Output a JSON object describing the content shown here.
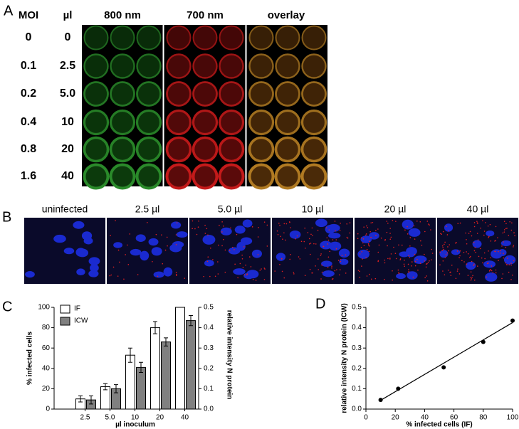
{
  "panel_a": {
    "label": "A",
    "headers": [
      "MOI",
      "µl",
      "800 nm",
      "700 nm",
      "overlay"
    ],
    "rows": [
      [
        "0",
        "0"
      ],
      [
        "0.1",
        "2.5"
      ],
      [
        "0.2",
        "5.0"
      ],
      [
        "0.4",
        "10"
      ],
      [
        "0.8",
        "20"
      ],
      [
        "1.6",
        "40"
      ]
    ]
  },
  "panel_b": {
    "label": "B",
    "images": [
      "uninfected",
      "2.5 µl",
      "5.0 µl",
      "10 µl",
      "20 µl",
      "40 µl"
    ]
  },
  "chart_data": [
    {
      "type": "bar",
      "panel_label": "C",
      "categories": [
        "2.5",
        "5.0",
        "10",
        "20",
        "40"
      ],
      "series": [
        {
          "name": "IF",
          "color": "#ffffff",
          "values": [
            10,
            22,
            53,
            80,
            100
          ],
          "errors": [
            3,
            3,
            7,
            6,
            0
          ]
        },
        {
          "name": "ICW",
          "color": "#808080",
          "values": [
            0.045,
            0.1,
            0.205,
            0.33,
            0.435
          ],
          "errors": [
            0.02,
            0.02,
            0.025,
            0.02,
            0.025
          ],
          "axis": "y2"
        }
      ],
      "ylim": [
        0,
        100
      ],
      "yticks": [
        0,
        20,
        40,
        60,
        80,
        100
      ],
      "y2lim": [
        0,
        0.5
      ],
      "y2ticks": [
        {
          "value": 0,
          "label": "0.0"
        },
        0.1,
        0.2,
        0.3,
        0.4,
        0.5
      ],
      "ylabel": "% infected cells",
      "y2label": "relative intensity N protein",
      "xlabel": "µl inoculum",
      "legend": "upper left"
    },
    {
      "type": "scatter",
      "panel_label": "D",
      "x": [
        10,
        22,
        53,
        80,
        100
      ],
      "y": [
        0.045,
        0.1,
        0.205,
        0.33,
        0.435
      ],
      "color": "#000000",
      "trendline": {
        "x": [
          10,
          100
        ],
        "y": [
          0.043,
          0.425
        ]
      },
      "xlim": [
        0,
        100
      ],
      "xticks": [
        0,
        20,
        40,
        60,
        80,
        100
      ],
      "ylim": [
        0,
        0.5
      ],
      "yticks": [
        {
          "value": 0,
          "label": "0.0"
        },
        0.1,
        0.2,
        0.3,
        0.4,
        0.5
      ],
      "xlabel": "% infected cells (IF)",
      "ylabel": "relative intensity N protein (ICW)"
    }
  ]
}
